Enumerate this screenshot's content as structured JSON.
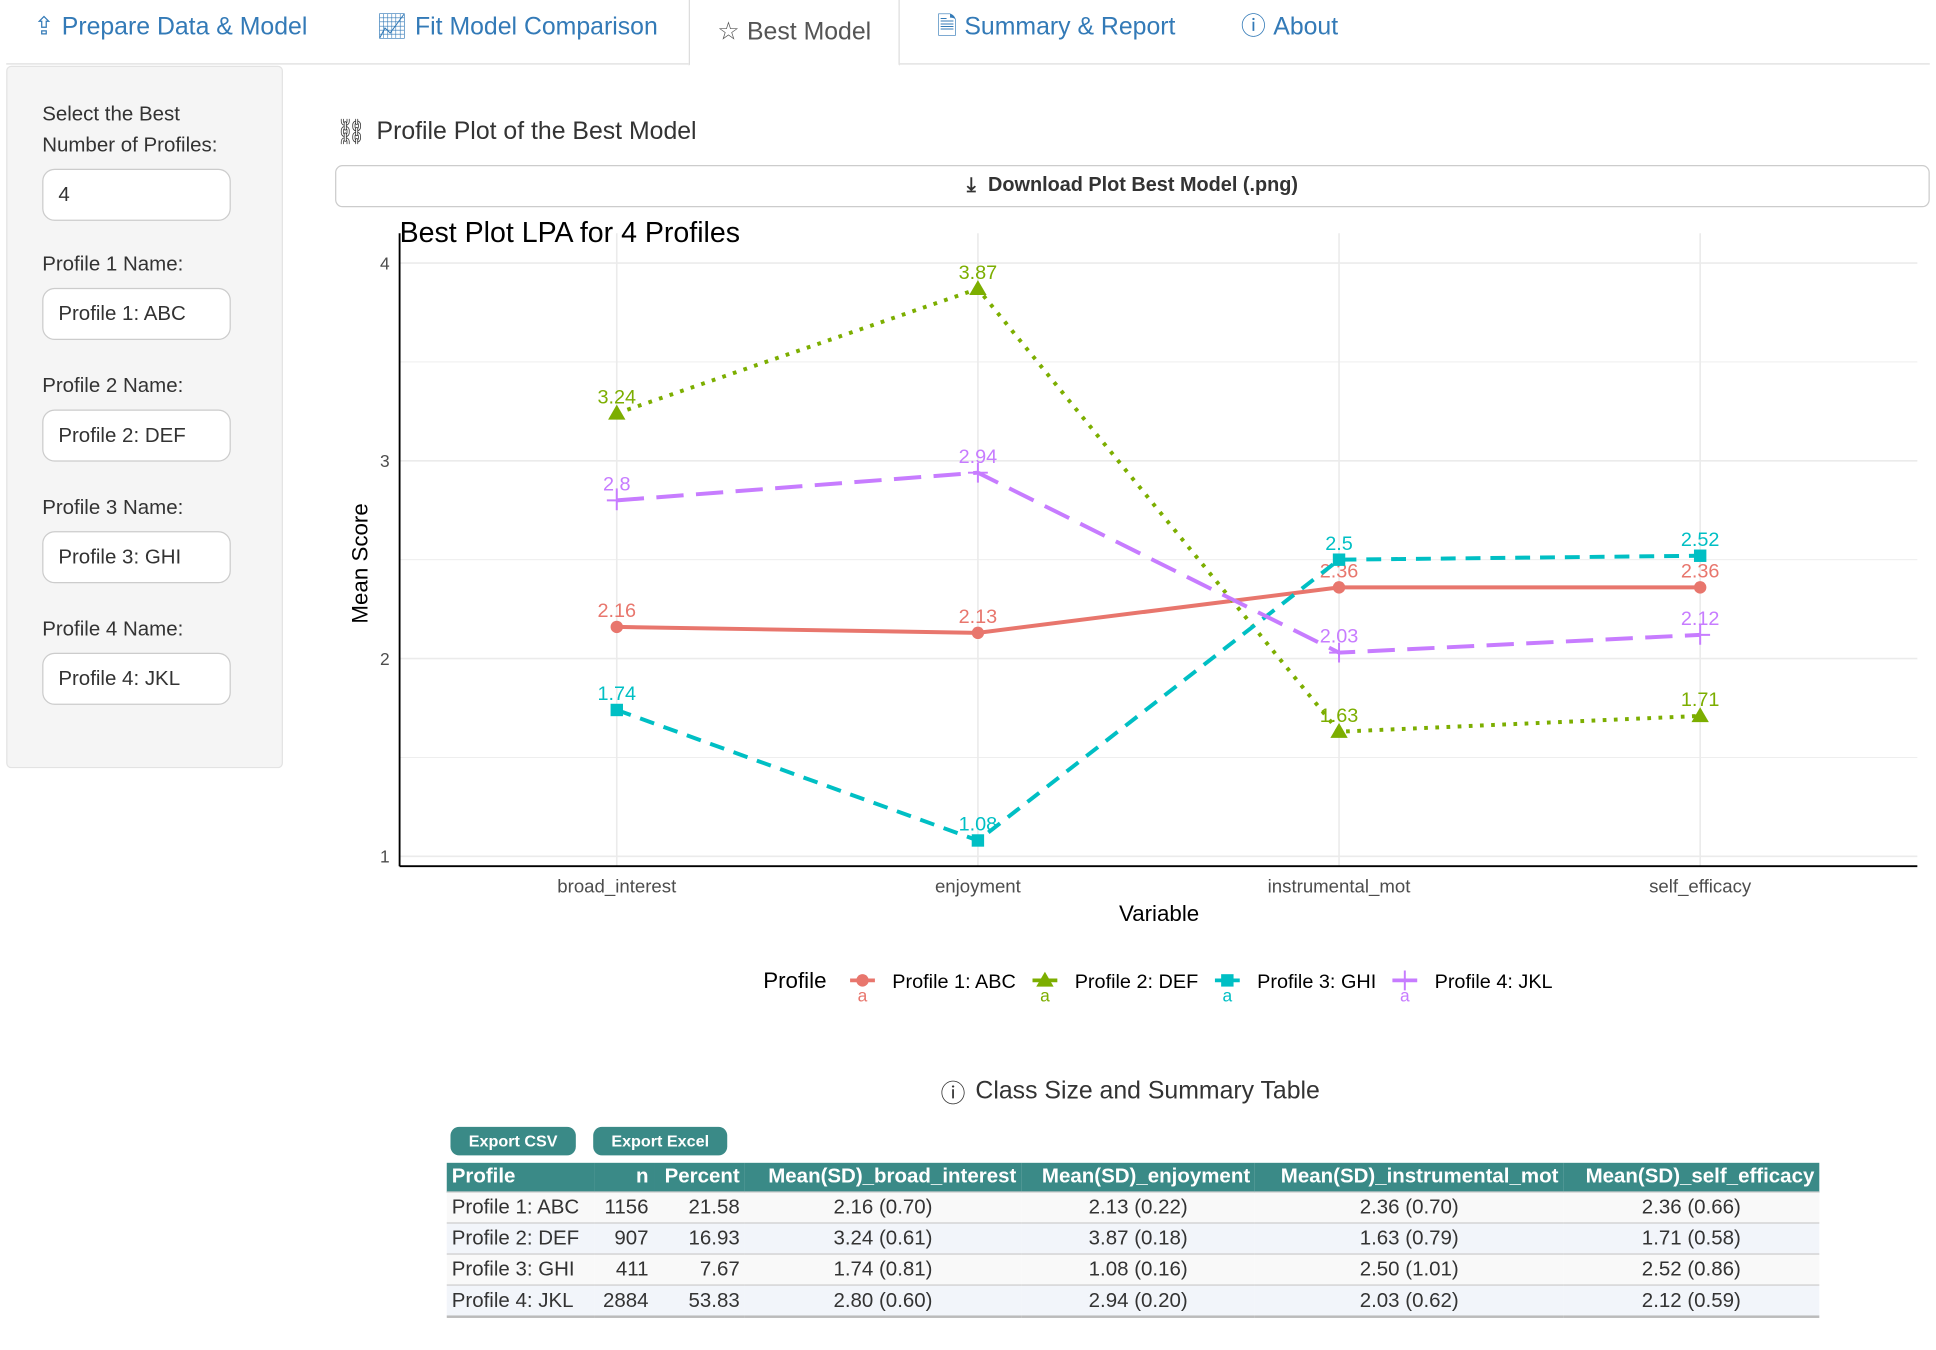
{
  "tabs": [
    {
      "label": "Prepare Data & Model",
      "icon": "upload-icon"
    },
    {
      "label": "Fit Model Comparison",
      "icon": "line-chart-icon"
    },
    {
      "label": "Best Model",
      "icon": "star-icon",
      "active": true
    },
    {
      "label": "Summary & Report",
      "icon": "file-icon"
    },
    {
      "label": "About",
      "icon": "info-icon"
    }
  ],
  "sidebar": {
    "num_label": "Select the Best Number of Profiles:",
    "num_value": "4",
    "profiles": [
      {
        "label": "Profile 1 Name:",
        "value": "Profile 1: ABC"
      },
      {
        "label": "Profile 2 Name:",
        "value": "Profile 2: DEF"
      },
      {
        "label": "Profile 3 Name:",
        "value": "Profile 3: GHI"
      },
      {
        "label": "Profile 4 Name:",
        "value": "Profile 4: JKL"
      }
    ]
  },
  "main": {
    "plot_heading": "Profile Plot of the Best Model",
    "download_label": "Download Plot Best Model (.png)",
    "table_heading": "Class Size and Summary Table",
    "export_csv": "Export CSV",
    "export_excel": "Export Excel"
  },
  "chart_data": {
    "type": "line",
    "title": "Best Plot LPA for 4 Profiles",
    "xlabel": "Variable",
    "ylabel": "Mean Score",
    "categories": [
      "broad_interest",
      "enjoyment",
      "instrumental_mot",
      "self_efficacy"
    ],
    "ylim": [
      1,
      4
    ],
    "yticks": [
      1,
      2,
      3,
      4
    ],
    "grid": true,
    "legend_title": "Profile",
    "legend_position": "bottom",
    "series": [
      {
        "name": "Profile 1: ABC",
        "values": [
          2.16,
          2.13,
          2.36,
          2.36
        ],
        "labels": [
          "2.16",
          "2.13",
          "2.36",
          "2.36"
        ],
        "color": "#E8766D",
        "linetype": "solid",
        "marker": "circle"
      },
      {
        "name": "Profile 2: DEF",
        "values": [
          3.24,
          3.87,
          1.63,
          1.71
        ],
        "labels": [
          "3.24",
          "3.87",
          "1.63",
          "1.71"
        ],
        "color": "#7CAE00",
        "linetype": "dotted",
        "marker": "triangle"
      },
      {
        "name": "Profile 3: GHI",
        "values": [
          1.74,
          1.08,
          2.5,
          2.52
        ],
        "labels": [
          "1.74",
          "1.08",
          "2.5",
          "2.52"
        ],
        "color": "#00BFC4",
        "linetype": "dashed",
        "marker": "square"
      },
      {
        "name": "Profile 4: JKL",
        "values": [
          2.8,
          2.94,
          2.03,
          2.12
        ],
        "labels": [
          "2.8",
          "2.94",
          "2.03",
          "2.12"
        ],
        "color": "#C77CFF",
        "linetype": "longdash",
        "marker": "plus"
      }
    ]
  },
  "table": {
    "columns": [
      "Profile",
      "n",
      "Percent",
      "Mean(SD)_broad_interest",
      "Mean(SD)_enjoyment",
      "Mean(SD)_instrumental_mot",
      "Mean(SD)_self_efficacy"
    ],
    "rows": [
      [
        "Profile 1: ABC",
        "1156",
        "21.58",
        "2.16 (0.70)",
        "2.13 (0.22)",
        "2.36 (0.70)",
        "2.36 (0.66)"
      ],
      [
        "Profile 2: DEF",
        "907",
        "16.93",
        "3.24 (0.61)",
        "3.87 (0.18)",
        "1.63 (0.79)",
        "1.71 (0.58)"
      ],
      [
        "Profile 3: GHI",
        "411",
        "7.67",
        "1.74 (0.81)",
        "1.08 (0.16)",
        "2.50 (1.01)",
        "2.52 (0.86)"
      ],
      [
        "Profile 4: JKL",
        "2884",
        "53.83",
        "2.80 (0.60)",
        "2.94 (0.20)",
        "2.03 (0.62)",
        "2.12 (0.59)"
      ]
    ]
  }
}
